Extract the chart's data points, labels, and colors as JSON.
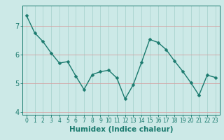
{
  "x": [
    0,
    1,
    2,
    3,
    4,
    5,
    6,
    7,
    8,
    9,
    10,
    11,
    12,
    13,
    14,
    15,
    16,
    17,
    18,
    19,
    20,
    21,
    22,
    23
  ],
  "y": [
    7.35,
    6.75,
    6.45,
    6.05,
    5.7,
    5.75,
    5.25,
    4.78,
    5.3,
    5.4,
    5.45,
    5.18,
    4.45,
    4.95,
    5.72,
    6.52,
    6.42,
    6.17,
    5.78,
    5.42,
    5.02,
    4.58,
    5.28,
    5.2
  ],
  "line_color": "#1a7a6e",
  "marker": "D",
  "markersize": 2.5,
  "linewidth": 1.0,
  "xlabel": "Humidex (Indice chaleur)",
  "ylim": [
    3.9,
    7.7
  ],
  "xlim": [
    -0.5,
    23.5
  ],
  "yticks": [
    4,
    5,
    6,
    7
  ],
  "xticks": [
    0,
    1,
    2,
    3,
    4,
    5,
    6,
    7,
    8,
    9,
    10,
    11,
    12,
    13,
    14,
    15,
    16,
    17,
    18,
    19,
    20,
    21,
    22,
    23
  ],
  "bg_color": "#cce9e7",
  "grid_color_major": "#aad4d0",
  "tick_color": "#1a7a6e",
  "label_color": "#1a7a6e",
  "xlabel_fontsize": 7.5,
  "tick_fontsize_x": 5.5,
  "tick_fontsize_y": 7.0
}
